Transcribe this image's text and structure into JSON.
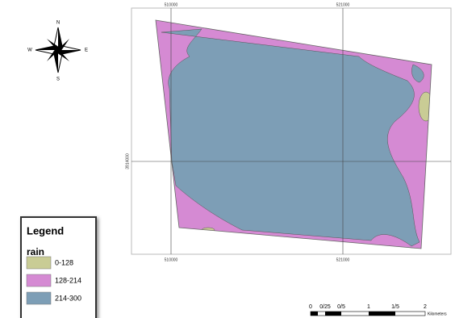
{
  "compass": {
    "n": "N",
    "s": "S",
    "e": "E",
    "w": "W"
  },
  "grid_labels": {
    "top": [
      "510000",
      "521000"
    ],
    "bottom": [
      "510000",
      "521000"
    ],
    "left": "3914000"
  },
  "legend": {
    "title": "Legend",
    "layer": "rain",
    "classes": [
      "0-128",
      "128-214",
      "214-300"
    ]
  },
  "scale_bar": {
    "labels": [
      "0",
      "0/25",
      "0/5",
      "1",
      "1/5",
      "2"
    ],
    "unit": "Kilometers"
  }
}
